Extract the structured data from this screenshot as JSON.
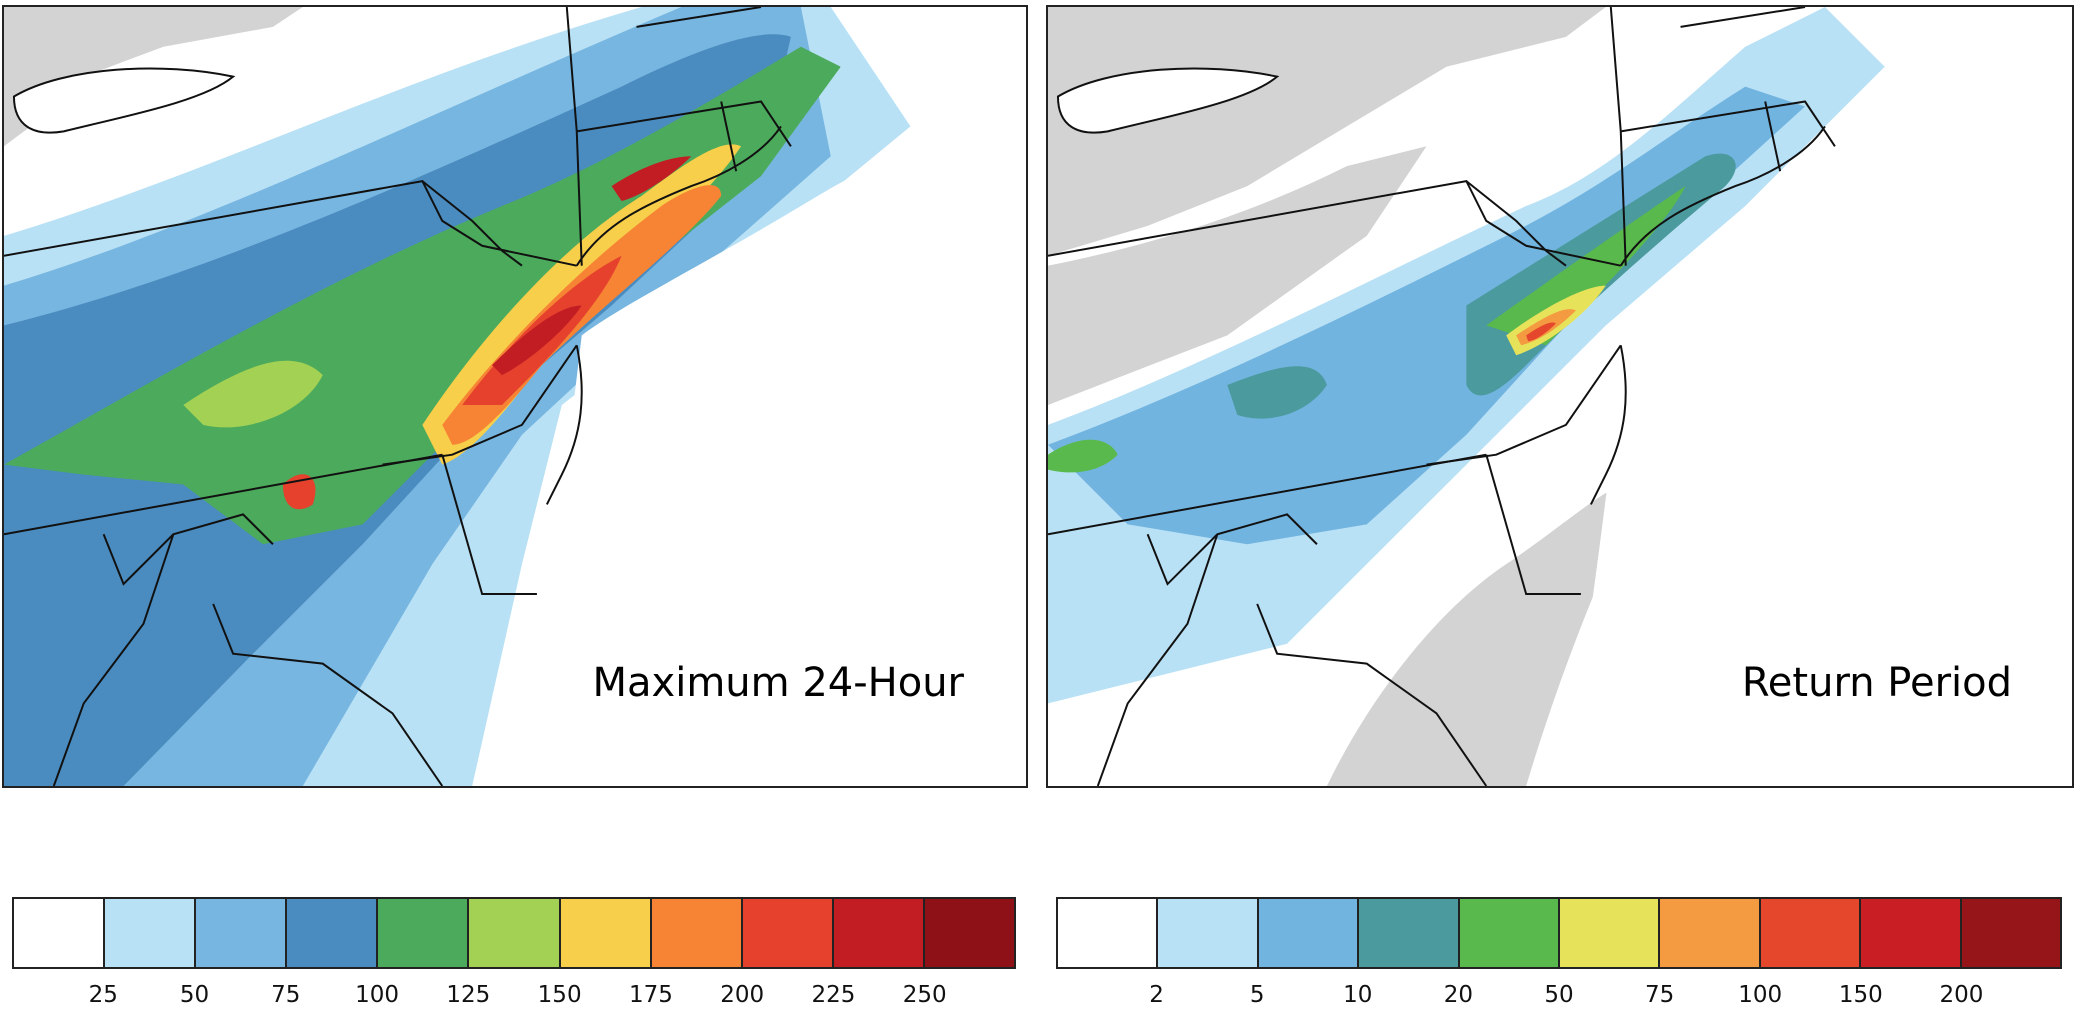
{
  "panels": [
    {
      "label": "Maximum 24-Hour"
    },
    {
      "label": "Return Period"
    }
  ],
  "colorbars": [
    {
      "colors": [
        "#ffffff",
        "#b9e1f5",
        "#77b6e0",
        "#4a8cc0",
        "#4caa5c",
        "#a2d153",
        "#f8cf4a",
        "#f68434",
        "#e5412d",
        "#c11d23",
        "#8e1118"
      ],
      "ticks": [
        "25",
        "50",
        "75",
        "100",
        "125",
        "150",
        "175",
        "200",
        "225",
        "250"
      ]
    },
    {
      "colors": [
        "#ffffff",
        "#b9e1f5",
        "#72b4e0",
        "#4b9a9e",
        "#5ab94c",
        "#e6e35a",
        "#f49a40",
        "#e5472d",
        "#c81e24",
        "#961519"
      ],
      "ticks": [
        "2",
        "5",
        "10",
        "20",
        "50",
        "75",
        "100",
        "150",
        "200"
      ]
    }
  ],
  "map_colors": {
    "land_gray": "#d3d3d3",
    "border": "#111111"
  }
}
